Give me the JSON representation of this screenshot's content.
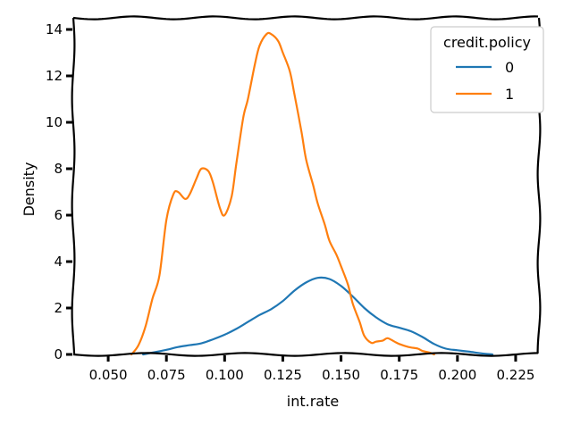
{
  "chart_data": {
    "type": "line",
    "title": "",
    "xlabel": "int.rate",
    "ylabel": "Density",
    "xlim": [
      0.035,
      0.235
    ],
    "ylim": [
      0,
      14.5
    ],
    "xticks": [
      0.05,
      0.075,
      0.1,
      0.125,
      0.15,
      0.175,
      0.2,
      0.225
    ],
    "xtick_labels": [
      "0.050",
      "0.075",
      "0.100",
      "0.125",
      "0.150",
      "0.175",
      "0.200",
      "0.225"
    ],
    "yticks": [
      0,
      2,
      4,
      6,
      8,
      10,
      12,
      14
    ],
    "ytick_labels": [
      "0",
      "2",
      "4",
      "6",
      "8",
      "10",
      "12",
      "14"
    ],
    "grid": false,
    "legend": {
      "title": "credit.policy",
      "position": "top-right"
    },
    "series": [
      {
        "name": "0",
        "color": "#1f77b4",
        "x": [
          0.065,
          0.07,
          0.075,
          0.08,
          0.085,
          0.09,
          0.095,
          0.1,
          0.105,
          0.11,
          0.115,
          0.12,
          0.125,
          0.13,
          0.135,
          0.14,
          0.145,
          0.15,
          0.155,
          0.16,
          0.165,
          0.17,
          0.175,
          0.18,
          0.185,
          0.19,
          0.195,
          0.2,
          0.205,
          0.21,
          0.215
        ],
        "values": [
          0.0,
          0.1,
          0.2,
          0.32,
          0.4,
          0.48,
          0.65,
          0.85,
          1.1,
          1.4,
          1.7,
          1.95,
          2.3,
          2.75,
          3.1,
          3.3,
          3.25,
          2.95,
          2.5,
          2.0,
          1.6,
          1.3,
          1.15,
          1.0,
          0.75,
          0.45,
          0.25,
          0.18,
          0.12,
          0.05,
          0.0
        ]
      },
      {
        "name": "1",
        "color": "#ff7f0e",
        "x": [
          0.06,
          0.063,
          0.066,
          0.069,
          0.072,
          0.075,
          0.078,
          0.08,
          0.083,
          0.085,
          0.088,
          0.09,
          0.093,
          0.095,
          0.098,
          0.1,
          0.103,
          0.105,
          0.108,
          0.11,
          0.113,
          0.115,
          0.118,
          0.12,
          0.123,
          0.125,
          0.128,
          0.13,
          0.133,
          0.135,
          0.138,
          0.14,
          0.143,
          0.145,
          0.148,
          0.15,
          0.153,
          0.155,
          0.158,
          0.16,
          0.163,
          0.165,
          0.168,
          0.17,
          0.173,
          0.175,
          0.178,
          0.18,
          0.183,
          0.185,
          0.188,
          0.19
        ],
        "values": [
          0.0,
          0.4,
          1.2,
          2.4,
          3.4,
          5.8,
          6.9,
          7.0,
          6.7,
          6.9,
          7.6,
          8.0,
          7.9,
          7.4,
          6.3,
          6.0,
          6.8,
          8.2,
          10.2,
          11.0,
          12.5,
          13.3,
          13.8,
          13.8,
          13.5,
          13.0,
          12.2,
          11.2,
          9.6,
          8.4,
          7.3,
          6.5,
          5.6,
          4.9,
          4.3,
          3.8,
          3.0,
          2.2,
          1.4,
          0.8,
          0.5,
          0.55,
          0.6,
          0.7,
          0.55,
          0.45,
          0.35,
          0.3,
          0.25,
          0.15,
          0.08,
          0.0
        ]
      }
    ]
  }
}
